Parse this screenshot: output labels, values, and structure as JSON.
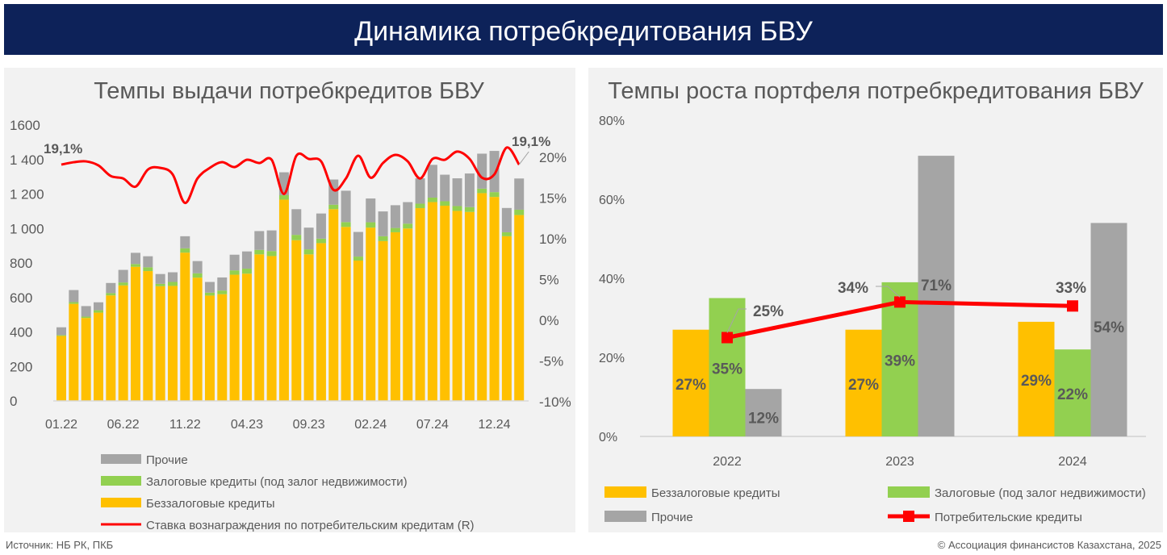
{
  "header": {
    "title": "Динамика потребкредитования БВУ"
  },
  "colors": {
    "navy": "#0d2259",
    "yellow": "#ffc000",
    "green": "#92d050",
    "grey": "#a5a5a5",
    "red": "#ff0000",
    "panel": "#f2f2f2"
  },
  "footer": {
    "source": "Источник: НБ РК, ПКБ",
    "copyright": "© Ассоциация финансистов Казахстана, 2025"
  },
  "chart_data": [
    {
      "type": "bar+line",
      "title": "Темпы выдачи потребкредитов БВУ",
      "ylim": [
        0,
        1600
      ],
      "yticks": [
        "0",
        "200",
        "400",
        "600",
        "800",
        "1 000",
        "1 200",
        "1 400",
        "1600"
      ],
      "y2lim": [
        -10,
        20
      ],
      "y2ticks": [
        "-10%",
        "-5%",
        "0%",
        "5%",
        "10%",
        "15%",
        "20%"
      ],
      "x_tick_labels": [
        "01.22",
        "06.22",
        "11.22",
        "04.23",
        "09.23",
        "02.24",
        "07.24",
        "12.24"
      ],
      "x_tick_every": 5,
      "months": [
        "01.22",
        "02.22",
        "03.22",
        "04.22",
        "05.22",
        "06.22",
        "07.22",
        "08.22",
        "09.22",
        "10.22",
        "11.22",
        "12.22",
        "01.23",
        "02.23",
        "03.23",
        "04.23",
        "05.23",
        "06.23",
        "07.23",
        "08.23",
        "09.23",
        "10.23",
        "11.23",
        "12.23",
        "01.24",
        "02.24",
        "03.24",
        "04.24",
        "05.24",
        "06.24",
        "07.24",
        "08.24",
        "09.24",
        "10.24",
        "11.24",
        "12.24",
        "01.25",
        "02.25"
      ],
      "series": [
        {
          "name": "Беззалоговые кредиты",
          "values": [
            377,
            563,
            481,
            512,
            612,
            670,
            778,
            753,
            665,
            667,
            860,
            715,
            611,
            619,
            732,
            738,
            850,
            840,
            1167,
            932,
            850,
            915,
            1112,
            1009,
            814,
            1005,
            927,
            978,
            1000,
            1118,
            1153,
            1132,
            1102,
            1096,
            1205,
            1183,
            955,
            1078
          ]
        },
        {
          "name": "Залоговые кредиты (под залог недвижимости)",
          "values": [
            5,
            10,
            8,
            14,
            13,
            17,
            16,
            22,
            14,
            23,
            25,
            25,
            17,
            21,
            25,
            29,
            26,
            29,
            26,
            31,
            29,
            26,
            26,
            28,
            23,
            31,
            28,
            25,
            28,
            26,
            26,
            26,
            28,
            28,
            26,
            28,
            23,
            31
          ]
        },
        {
          "name": "Прочие",
          "values": [
            45,
            70,
            61,
            46,
            59,
            73,
            65,
            64,
            57,
            56,
            70,
            71,
            62,
            76,
            91,
            100,
            109,
            120,
            133,
            149,
            126,
            146,
            146,
            182,
            143,
            138,
            144,
            132,
            125,
            147,
            190,
            154,
            161,
            195,
            203,
            239,
            141,
            181
          ]
        },
        {
          "name": "Ставка вознаграждения по  потребительским кредитам (R)",
          "axis": "right",
          "values": [
            19.1,
            19.4,
            19.5,
            19.0,
            17.7,
            17.4,
            16.4,
            18.5,
            18.7,
            17.9,
            14.4,
            17.4,
            18.7,
            19.4,
            18.8,
            19.7,
            19.3,
            19.7,
            15.5,
            20.2,
            19.8,
            19.5,
            16.0,
            17.4,
            20.2,
            17.5,
            19.3,
            20.3,
            19.5,
            17.4,
            19.8,
            19.7,
            20.7,
            19.8,
            17.5,
            17.9,
            21.2,
            19.1
          ]
        }
      ],
      "annotations": {
        "first_rate": "19,1%",
        "last_rate": "19,1%"
      },
      "legend": [
        "Прочие",
        "Залоговые кредиты (под залог недвижимости)",
        "Беззалоговые кредиты",
        "Ставка вознаграждения по  потребительским кредитам (R)"
      ],
      "legend_placement": "bottom"
    },
    {
      "type": "bar+line",
      "title": "Темпы роста портфеля потребкредитования БВУ",
      "categories": [
        "2022",
        "2023",
        "2024"
      ],
      "ylim": [
        0,
        80
      ],
      "yticks": [
        "0%",
        "20%",
        "40%",
        "60%",
        "80%"
      ],
      "series": [
        {
          "name": "Беззалоговые кредиты",
          "values": [
            27,
            27,
            29
          ],
          "labels": [
            "27%",
            "27%",
            "29%"
          ]
        },
        {
          "name": "Залоговые  (под залог недвижимости)",
          "values": [
            35,
            39,
            22
          ],
          "labels": [
            "35%",
            "39%",
            "22%"
          ]
        },
        {
          "name": "Прочие",
          "values": [
            12,
            71,
            54
          ],
          "labels": [
            "12%",
            "71%",
            "54%"
          ]
        },
        {
          "name": "Потребительские кредиты",
          "type": "line",
          "values": [
            25,
            34,
            33
          ],
          "labels": [
            "25%",
            "34%",
            "33%"
          ]
        }
      ],
      "legend_placement": "bottom"
    }
  ]
}
